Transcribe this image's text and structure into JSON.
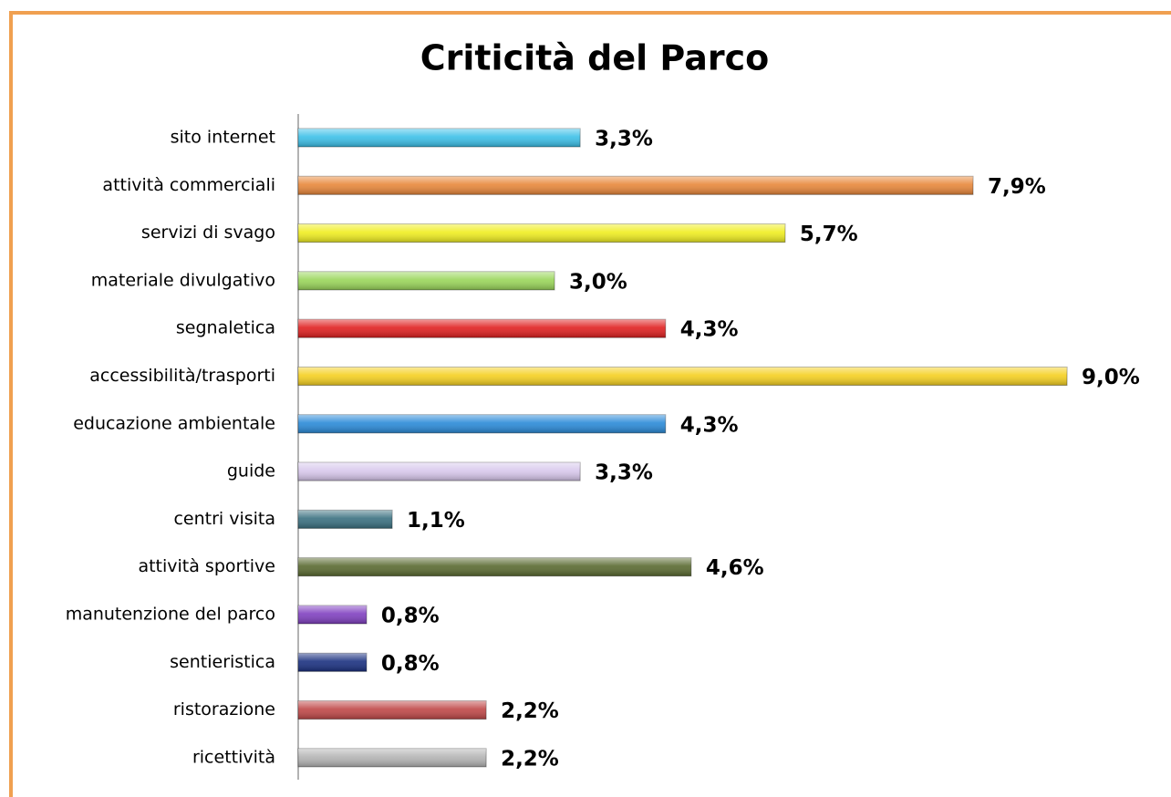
{
  "chart_data": {
    "type": "bar",
    "orientation": "horizontal",
    "title": "Criticità del Parco",
    "categories": [
      "sito internet",
      "attività commerciali",
      "servizi di svago",
      "materiale divulgativo",
      "segnaletica",
      "accessibilità/trasporti",
      "educazione ambientale",
      "guide",
      "centri visita",
      "attività sportive",
      "manutenzione del parco",
      "sentieristica",
      "ristorazione",
      "ricettività"
    ],
    "values": [
      3.3,
      7.9,
      5.7,
      3.0,
      4.3,
      9.0,
      4.3,
      3.3,
      1.1,
      4.6,
      0.8,
      0.8,
      2.2,
      2.2
    ],
    "value_labels": [
      "3,3%",
      "7,9%",
      "5,7%",
      "3,0%",
      "4,3%",
      "9,0%",
      "4,3%",
      "3,3%",
      "1,1%",
      "4,6%",
      "0,8%",
      "0,8%",
      "2,2%",
      "2,2%"
    ],
    "colors": [
      "#3cc0e8",
      "#e8873a",
      "#f0ee20",
      "#9ad65a",
      "#e02020",
      "#f5d020",
      "#2a8ad8",
      "#d8c8ec",
      "#3a7080",
      "#5a6a30",
      "#8040c0",
      "#1a3080",
      "#c04848",
      "#b4b4b4"
    ]
  }
}
